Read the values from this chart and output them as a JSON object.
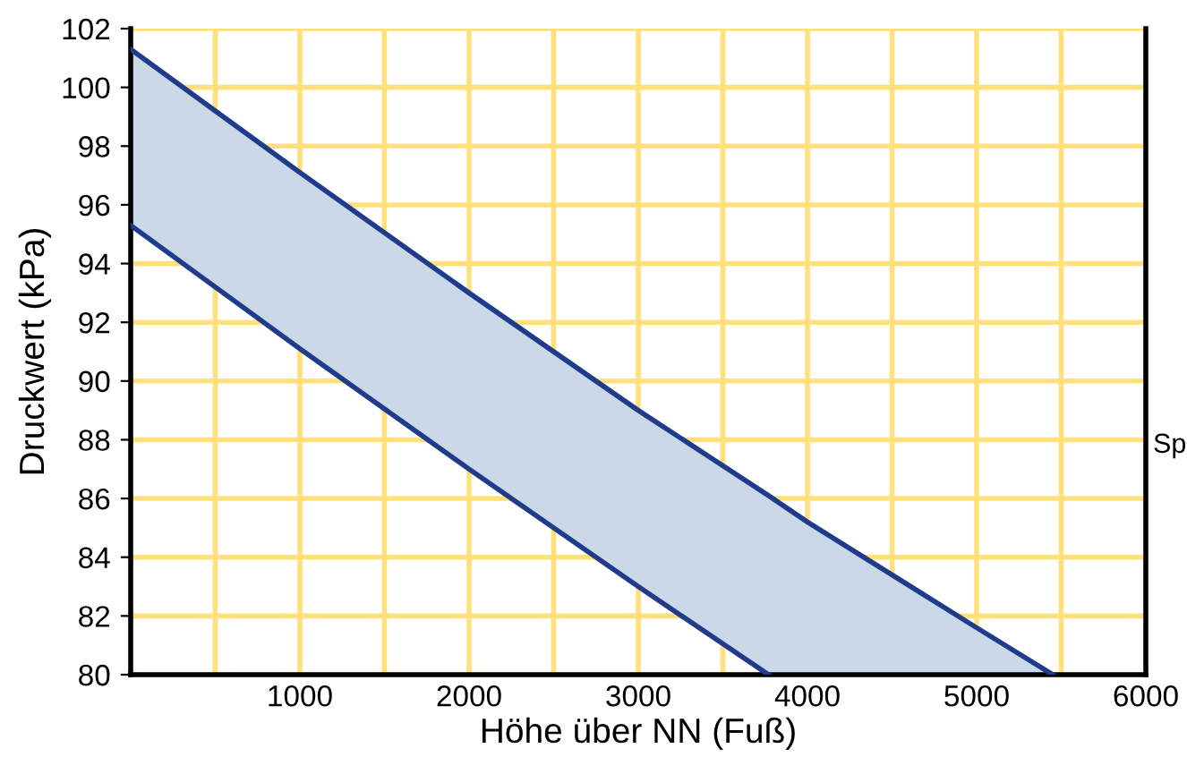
{
  "chart_data": {
    "type": "line",
    "xlabel": "Höhe über NN (Fuß)",
    "ylabel": "Druckwert (kPa)",
    "annotations": [
      "Sp"
    ],
    "series": [
      {
        "color": "#1f3b8c",
        "x": [
          0,
          1000,
          2000,
          3000,
          3770,
          4000,
          5000,
          5450
        ],
        "values": [
          101.3,
          97.1,
          93,
          89,
          86.1,
          85.2,
          81.6,
          80
        ],
        "lower": [
          95.3,
          91.1,
          87,
          83,
          80,
          80,
          80,
          80
        ],
        "upper": [
          101.3,
          97.1,
          93,
          89,
          86.1,
          85.2,
          81.6,
          80
        ]
      },
      {
        "color": "#1f3b8c",
        "x": [
          0,
          1000,
          2000,
          3000,
          3770
        ],
        "values": [
          95.3,
          91.1,
          87,
          83,
          80
        ]
      }
    ],
    "xlim": [
      0,
      6000
    ],
    "xticks": [
      {
        "value": 0,
        "label": null
      },
      {
        "value": 500,
        "label": null
      },
      1000,
      {
        "value": 1500,
        "label": null
      },
      2000,
      {
        "value": 2500,
        "label": null
      },
      3000,
      {
        "value": 3500,
        "label": null
      },
      4000,
      {
        "value": 4500,
        "label": null
      },
      5000,
      {
        "value": 5500,
        "label": null
      },
      6000
    ],
    "ylim": [
      80,
      102
    ],
    "yticks": [
      80,
      82,
      84,
      86,
      88,
      90,
      92,
      94,
      96,
      98,
      100,
      102
    ],
    "grid": true,
    "line_style": "solid",
    "marker": "none"
  }
}
